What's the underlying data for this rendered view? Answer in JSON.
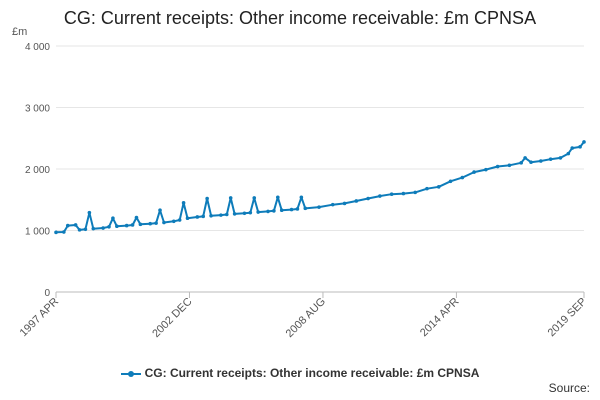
{
  "chart_data": {
    "type": "line",
    "title": "CG: Current receipts: Other income receivable: £m CPNSA",
    "ylabel": "£m",
    "ylim": [
      0,
      4000
    ],
    "y_ticks": [
      {
        "value": 0,
        "label": "0"
      },
      {
        "value": 1000,
        "label": "1 000"
      },
      {
        "value": 2000,
        "label": "2 000"
      },
      {
        "value": 3000,
        "label": "3 000"
      },
      {
        "value": 4000,
        "label": "4 000"
      }
    ],
    "x_start": "1997-04",
    "x_end": "2019-09",
    "x_ticks": [
      {
        "date": "1997-04",
        "label": "1997 APR"
      },
      {
        "date": "2002-12",
        "label": "2002 DEC"
      },
      {
        "date": "2008-08",
        "label": "2008 AUG"
      },
      {
        "date": "2014-04",
        "label": "2014 APR"
      },
      {
        "date": "2019-09",
        "label": "2019 SEP"
      }
    ],
    "grid": true,
    "legend_position": "bottom",
    "series": [
      {
        "name": "CG: Current receipts: Other income receivable: £m CPNSA",
        "color": "#0e7cba",
        "points": [
          {
            "x": "1997-04",
            "y": 970
          },
          {
            "x": "1997-08",
            "y": 975
          },
          {
            "x": "1997-10",
            "y": 1080
          },
          {
            "x": "1998-02",
            "y": 1090
          },
          {
            "x": "1998-04",
            "y": 1010
          },
          {
            "x": "1998-07",
            "y": 1020
          },
          {
            "x": "1998-09",
            "y": 1290
          },
          {
            "x": "1998-11",
            "y": 1030
          },
          {
            "x": "1999-04",
            "y": 1040
          },
          {
            "x": "1999-07",
            "y": 1060
          },
          {
            "x": "1999-09",
            "y": 1200
          },
          {
            "x": "1999-11",
            "y": 1070
          },
          {
            "x": "2000-04",
            "y": 1080
          },
          {
            "x": "2000-07",
            "y": 1090
          },
          {
            "x": "2000-09",
            "y": 1210
          },
          {
            "x": "2000-11",
            "y": 1100
          },
          {
            "x": "2001-04",
            "y": 1110
          },
          {
            "x": "2001-07",
            "y": 1120
          },
          {
            "x": "2001-09",
            "y": 1330
          },
          {
            "x": "2001-11",
            "y": 1130
          },
          {
            "x": "2002-04",
            "y": 1150
          },
          {
            "x": "2002-07",
            "y": 1170
          },
          {
            "x": "2002-09",
            "y": 1450
          },
          {
            "x": "2002-11",
            "y": 1200
          },
          {
            "x": "2003-04",
            "y": 1220
          },
          {
            "x": "2003-07",
            "y": 1230
          },
          {
            "x": "2003-09",
            "y": 1520
          },
          {
            "x": "2003-11",
            "y": 1240
          },
          {
            "x": "2004-04",
            "y": 1250
          },
          {
            "x": "2004-07",
            "y": 1260
          },
          {
            "x": "2004-09",
            "y": 1530
          },
          {
            "x": "2004-11",
            "y": 1270
          },
          {
            "x": "2005-04",
            "y": 1280
          },
          {
            "x": "2005-07",
            "y": 1290
          },
          {
            "x": "2005-09",
            "y": 1530
          },
          {
            "x": "2005-11",
            "y": 1300
          },
          {
            "x": "2006-04",
            "y": 1310
          },
          {
            "x": "2006-07",
            "y": 1320
          },
          {
            "x": "2006-09",
            "y": 1540
          },
          {
            "x": "2006-11",
            "y": 1330
          },
          {
            "x": "2007-04",
            "y": 1340
          },
          {
            "x": "2007-07",
            "y": 1350
          },
          {
            "x": "2007-09",
            "y": 1540
          },
          {
            "x": "2007-11",
            "y": 1360
          },
          {
            "x": "2008-06",
            "y": 1380
          },
          {
            "x": "2009-01",
            "y": 1420
          },
          {
            "x": "2009-07",
            "y": 1440
          },
          {
            "x": "2010-01",
            "y": 1480
          },
          {
            "x": "2010-07",
            "y": 1520
          },
          {
            "x": "2011-01",
            "y": 1560
          },
          {
            "x": "2011-07",
            "y": 1590
          },
          {
            "x": "2012-01",
            "y": 1600
          },
          {
            "x": "2012-07",
            "y": 1620
          },
          {
            "x": "2013-01",
            "y": 1680
          },
          {
            "x": "2013-07",
            "y": 1710
          },
          {
            "x": "2014-01",
            "y": 1800
          },
          {
            "x": "2014-07",
            "y": 1860
          },
          {
            "x": "2015-01",
            "y": 1950
          },
          {
            "x": "2015-07",
            "y": 1990
          },
          {
            "x": "2016-01",
            "y": 2040
          },
          {
            "x": "2016-07",
            "y": 2060
          },
          {
            "x": "2017-01",
            "y": 2100
          },
          {
            "x": "2017-03",
            "y": 2180
          },
          {
            "x": "2017-06",
            "y": 2110
          },
          {
            "x": "2017-11",
            "y": 2130
          },
          {
            "x": "2018-04",
            "y": 2160
          },
          {
            "x": "2018-09",
            "y": 2180
          },
          {
            "x": "2019-01",
            "y": 2250
          },
          {
            "x": "2019-03",
            "y": 2340
          },
          {
            "x": "2019-07",
            "y": 2360
          },
          {
            "x": "2019-09",
            "y": 2440
          }
        ]
      }
    ]
  },
  "legend": {
    "label": "CG: Current receipts: Other income receivable: £m CPNSA"
  },
  "source_label": "Source:"
}
